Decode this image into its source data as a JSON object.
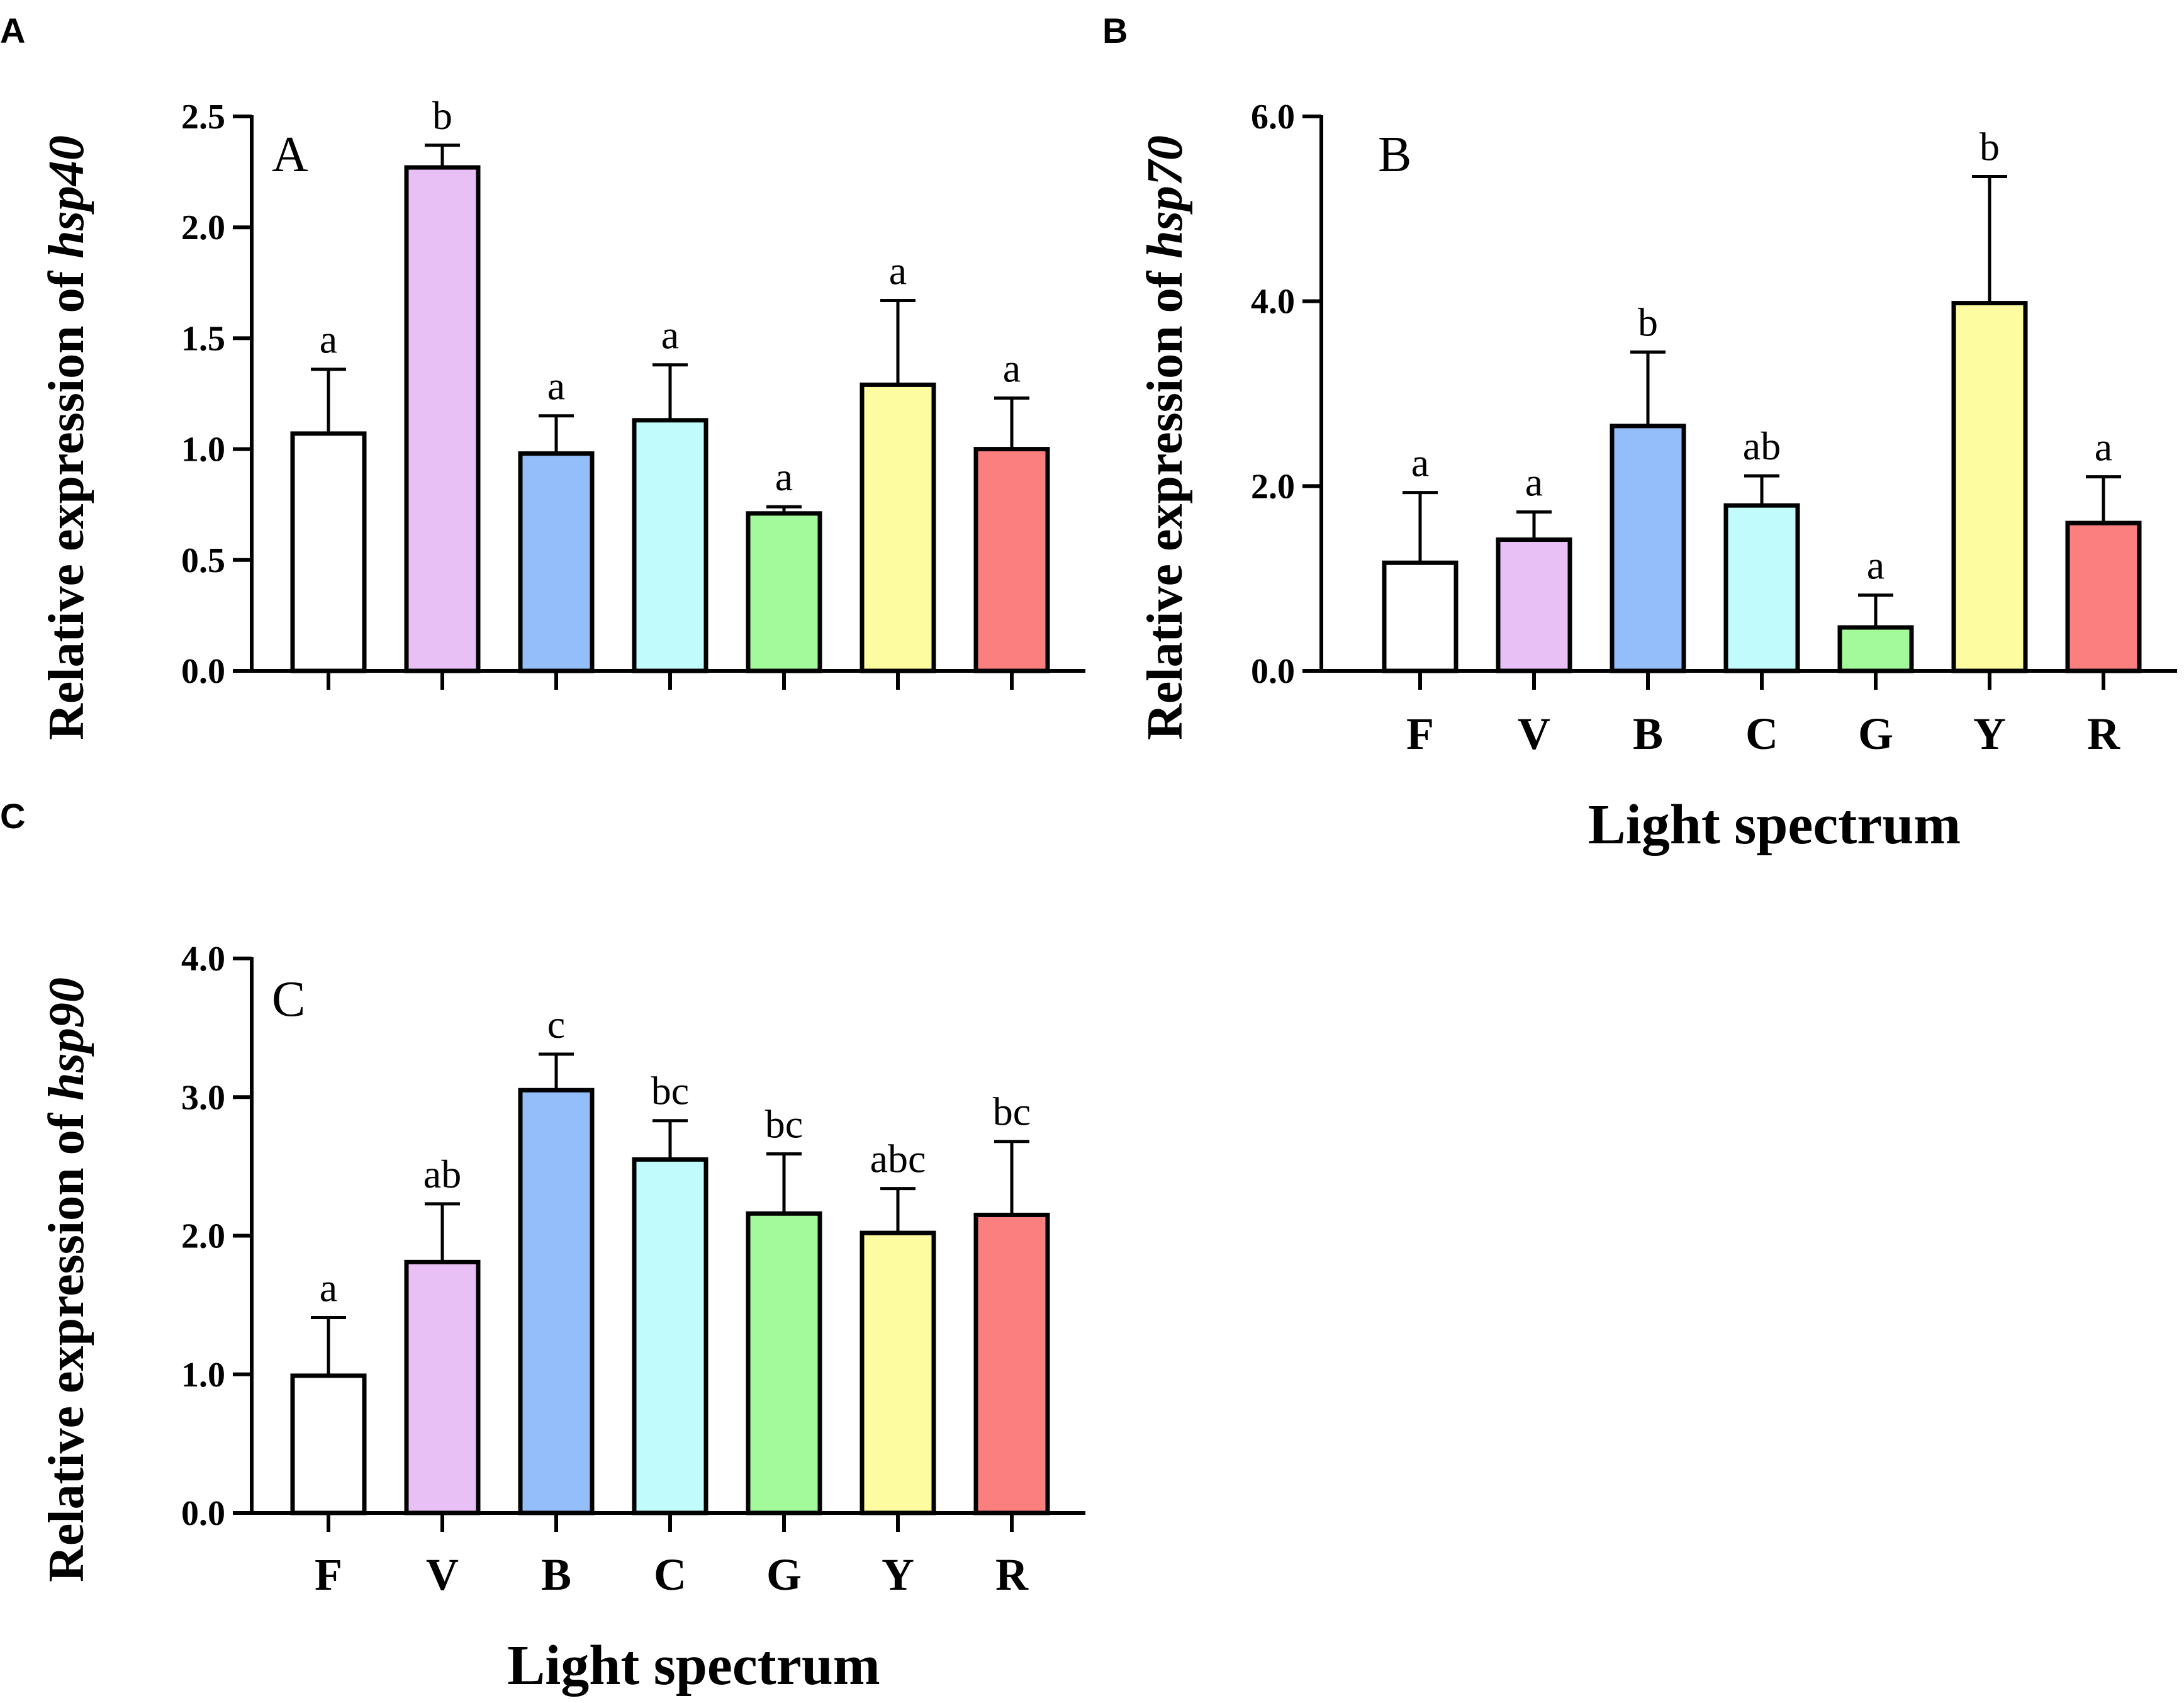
{
  "figure": {
    "categories": [
      "F",
      "V",
      "B",
      "C",
      "G",
      "Y",
      "R"
    ],
    "bar_colors": [
      "#ffffff",
      "#e8c0f5",
      "#93bef9",
      "#c2fbfb",
      "#a3fa9a",
      "#fdfca1",
      "#fb7f7f"
    ],
    "xlabel": "Light spectrum"
  },
  "chart_data": [
    {
      "type": "bar",
      "panel": "A",
      "inset_label": "A",
      "ylabel_prefix": "Relative expression of ",
      "gene": "hsp40",
      "categories": [
        "F",
        "V",
        "B",
        "C",
        "G",
        "Y",
        "R"
      ],
      "values": [
        1.07,
        2.27,
        0.98,
        1.13,
        0.71,
        1.29,
        1.0
      ],
      "errors": [
        0.29,
        0.1,
        0.17,
        0.25,
        0.03,
        0.38,
        0.23
      ],
      "significance": [
        "a",
        "b",
        "a",
        "a",
        "a",
        "a",
        "a"
      ],
      "yticks": [
        "0.0",
        "0.5",
        "1.0",
        "1.5",
        "2.0",
        "2.5"
      ],
      "ylim": [
        0,
        2.5
      ],
      "show_xticklabels": false,
      "xlabel": ""
    },
    {
      "type": "bar",
      "panel": "B",
      "inset_label": "B",
      "ylabel_prefix": "Relative expression of ",
      "gene": "hsp70",
      "categories": [
        "F",
        "V",
        "B",
        "C",
        "G",
        "Y",
        "R"
      ],
      "values": [
        1.17,
        1.42,
        2.65,
        1.79,
        0.47,
        3.98,
        1.6
      ],
      "errors": [
        0.76,
        0.3,
        0.8,
        0.32,
        0.35,
        1.37,
        0.5
      ],
      "significance": [
        "a",
        "a",
        "b",
        "ab",
        "a",
        "b",
        "a"
      ],
      "yticks": [
        "0.0",
        "2.0",
        "4.0",
        "6.0"
      ],
      "ylim": [
        0,
        6
      ],
      "show_xticklabels": true,
      "xlabel": "Light spectrum"
    },
    {
      "type": "bar",
      "panel": "C",
      "inset_label": "C",
      "ylabel_prefix": "Relative expression of ",
      "gene": "hsp90",
      "categories": [
        "F",
        "V",
        "B",
        "C",
        "G",
        "Y",
        "R"
      ],
      "values": [
        0.99,
        1.81,
        3.05,
        2.55,
        2.16,
        2.02,
        2.15
      ],
      "errors": [
        0.42,
        0.42,
        0.26,
        0.28,
        0.43,
        0.32,
        0.53
      ],
      "significance": [
        "a",
        "ab",
        "c",
        "bc",
        "bc",
        "abc",
        "bc"
      ],
      "yticks": [
        "0.0",
        "1.0",
        "2.0",
        "3.0",
        "4.0"
      ],
      "ylim": [
        0,
        4
      ],
      "show_xticklabels": true,
      "xlabel": "Light spectrum"
    }
  ]
}
